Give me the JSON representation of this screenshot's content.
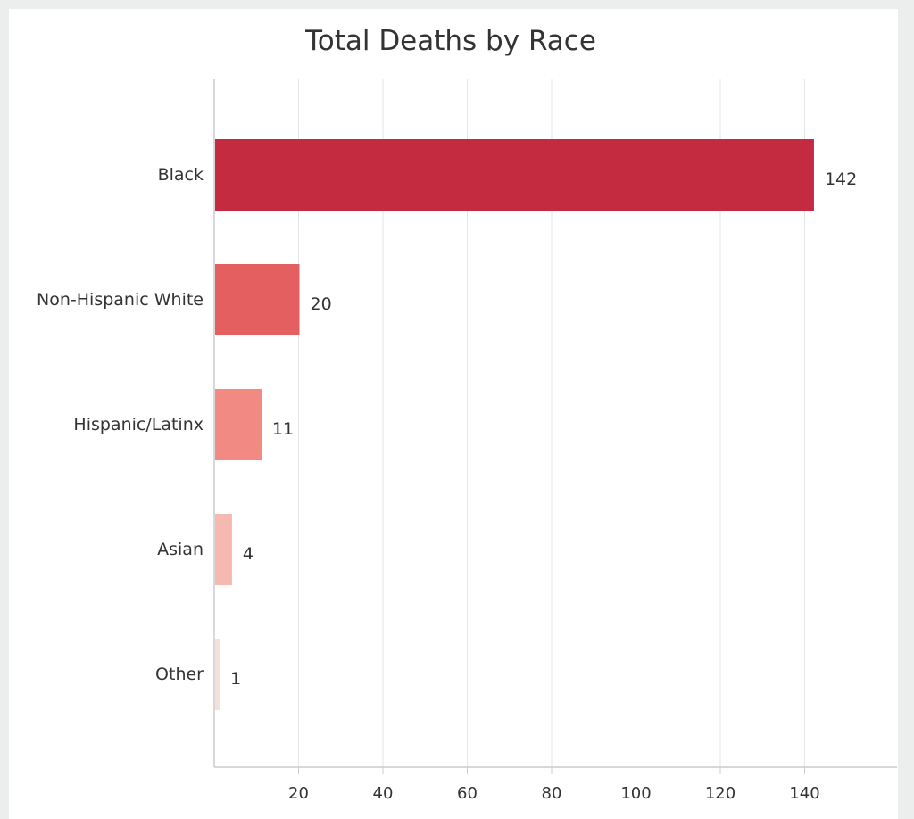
{
  "chart_data": {
    "type": "bar",
    "orientation": "horizontal",
    "title": "Total Deaths by Race",
    "categories": [
      "Black",
      "Non-Hispanic White",
      "Hispanic/Latinx",
      "Asian",
      "Other"
    ],
    "values": [
      142,
      20,
      11,
      4,
      1
    ],
    "colors": [
      "#c42b40",
      "#e45f5f",
      "#f08a82",
      "#f6b9b1",
      "#f3e1dc"
    ],
    "x_ticks": [
      20,
      40,
      60,
      80,
      100,
      120,
      140
    ],
    "xlim": [
      0,
      160
    ],
    "grid": true,
    "legend": "none"
  }
}
